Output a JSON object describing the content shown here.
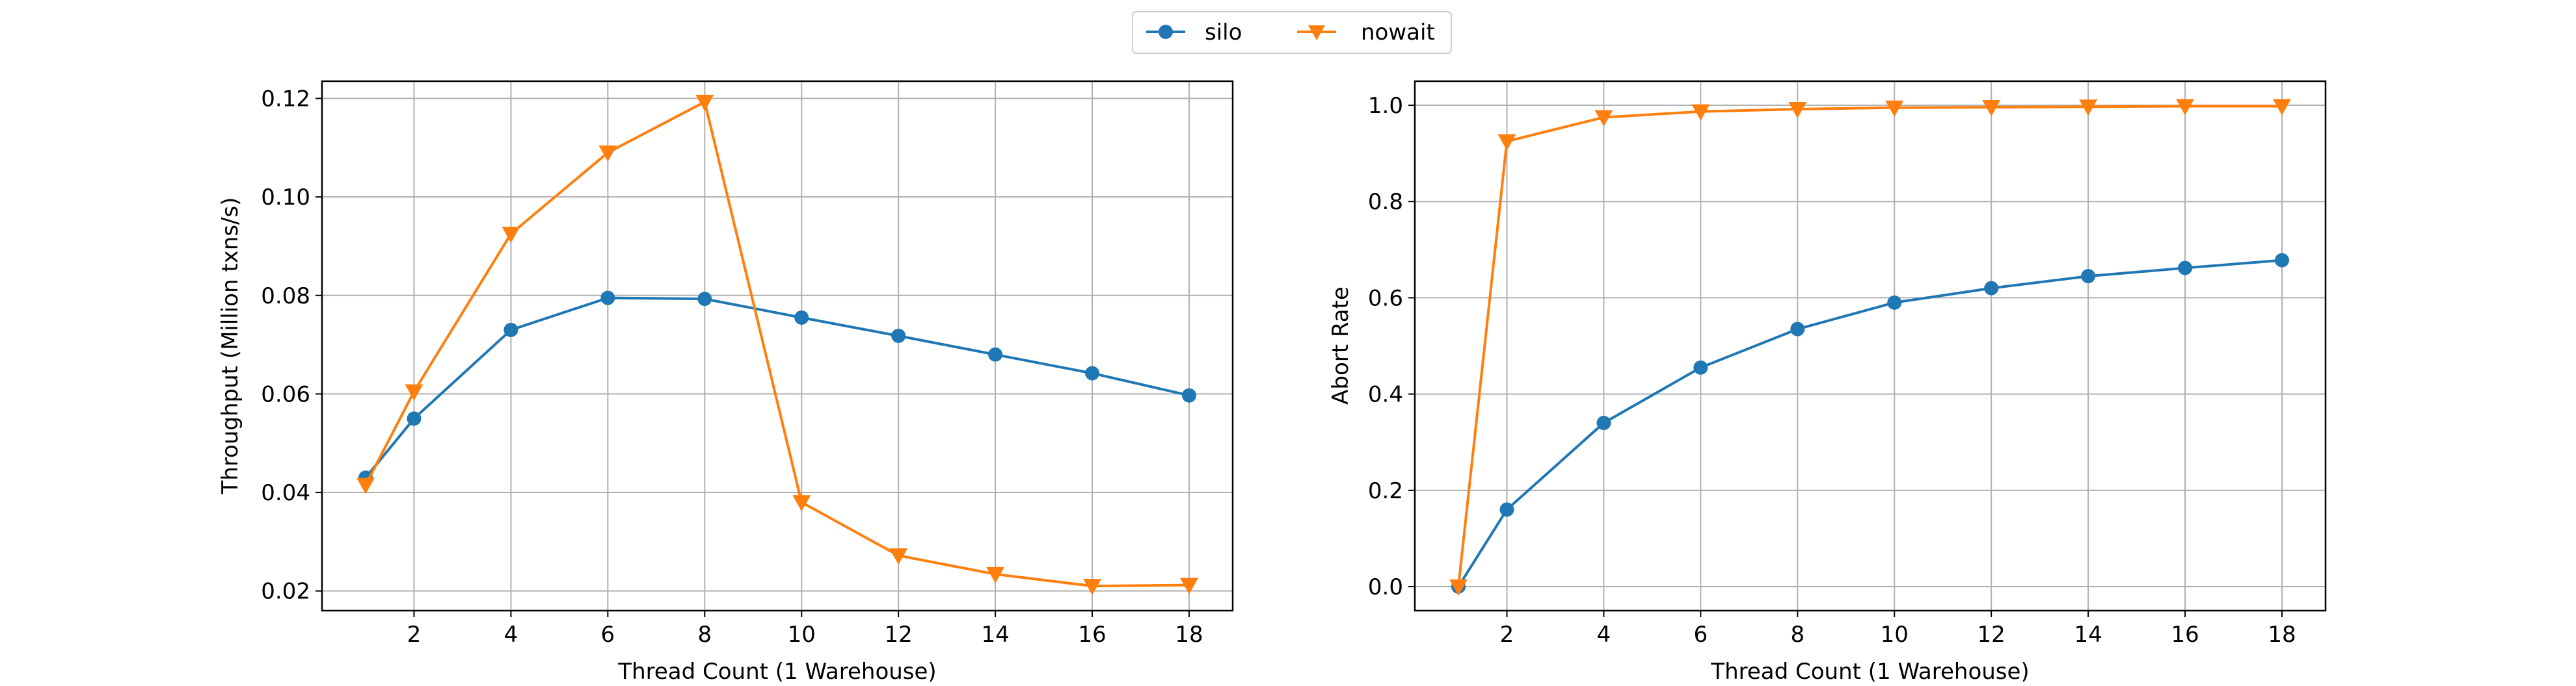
{
  "legend": {
    "placement": "top-center",
    "entries": [
      {
        "name": "silo",
        "color": "#1f77b4",
        "marker": "circle"
      },
      {
        "name": "nowait",
        "color": "#ff7f0e",
        "marker": "triangle-down"
      }
    ]
  },
  "chart_data": [
    {
      "type": "line",
      "xlabel": "Thread Count (1 Warehouse)",
      "ylabel": "Throughput (Million txns/s)",
      "xlim": [
        0.1,
        18.9
      ],
      "ylim": [
        0.016,
        0.1235
      ],
      "xticks": [
        2,
        4,
        6,
        8,
        10,
        12,
        14,
        16,
        18
      ],
      "yticks": [
        0.02,
        0.04,
        0.06,
        0.08,
        0.1,
        0.12
      ],
      "ytick_labels": [
        "0.02",
        "0.04",
        "0.06",
        "0.08",
        "0.10",
        "0.12"
      ],
      "grid": true,
      "series": [
        {
          "name": "silo",
          "color": "#1f77b4",
          "marker": "circle",
          "x": [
            1,
            2,
            4,
            6,
            8,
            10,
            12,
            14,
            16,
            18
          ],
          "values": [
            0.043,
            0.055,
            0.073,
            0.0795,
            0.0793,
            0.0755,
            0.0718,
            0.068,
            0.0642,
            0.0597
          ]
        },
        {
          "name": "nowait",
          "color": "#ff7f0e",
          "marker": "triangle-down",
          "x": [
            1,
            2,
            4,
            6,
            8,
            10,
            12,
            14,
            16,
            18
          ],
          "values": [
            0.0415,
            0.0605,
            0.0925,
            0.109,
            0.1193,
            0.038,
            0.0272,
            0.0234,
            0.021,
            0.0212
          ]
        }
      ]
    },
    {
      "type": "line",
      "xlabel": "Thread Count (1 Warehouse)",
      "ylabel": "Abort Rate",
      "xlim": [
        0.1,
        18.9
      ],
      "ylim": [
        -0.05,
        1.05
      ],
      "xticks": [
        2,
        4,
        6,
        8,
        10,
        12,
        14,
        16,
        18
      ],
      "yticks": [
        0.0,
        0.2,
        0.4,
        0.6,
        0.8,
        1.0
      ],
      "ytick_labels": [
        "0.0",
        "0.2",
        "0.4",
        "0.6",
        "0.8",
        "1.0"
      ],
      "grid": true,
      "series": [
        {
          "name": "silo",
          "color": "#1f77b4",
          "marker": "circle",
          "x": [
            1,
            2,
            4,
            6,
            8,
            10,
            12,
            14,
            16,
            18
          ],
          "values": [
            0.0,
            0.16,
            0.34,
            0.455,
            0.535,
            0.59,
            0.62,
            0.645,
            0.662,
            0.678
          ]
        },
        {
          "name": "nowait",
          "color": "#ff7f0e",
          "marker": "triangle-down",
          "x": [
            1,
            2,
            4,
            6,
            8,
            10,
            12,
            14,
            16,
            18
          ],
          "values": [
            0.0,
            0.925,
            0.975,
            0.987,
            0.992,
            0.995,
            0.996,
            0.997,
            0.998,
            0.998
          ]
        }
      ]
    }
  ]
}
